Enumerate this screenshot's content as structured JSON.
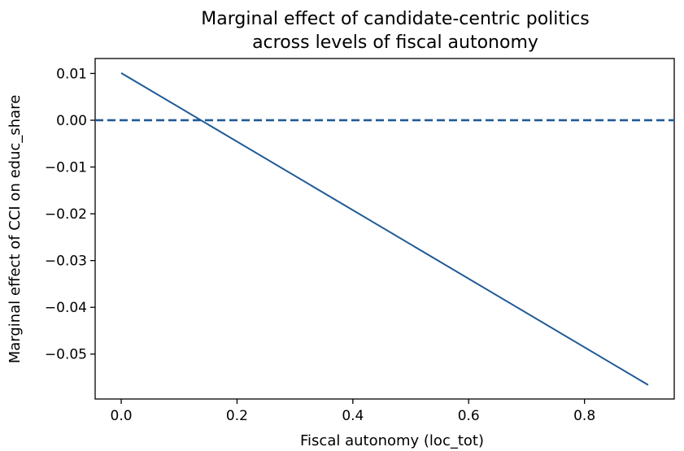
{
  "chart_data": {
    "type": "line",
    "title": "Marginal effect of candidate-centric politics across levels of fiscal autonomy",
    "title_lines": [
      "Marginal effect of candidate-centric politics",
      "across levels of fiscal autonomy"
    ],
    "xlabel": "Fiscal autonomy (loc_tot)",
    "ylabel": "Marginal effect of CCI on educ_share",
    "xlim": [
      -0.045,
      0.955
    ],
    "ylim": [
      -0.0596,
      0.0132
    ],
    "x_ticks": [
      0.0,
      0.2,
      0.4,
      0.6,
      0.8
    ],
    "x_tick_labels": [
      "0.0",
      "0.2",
      "0.4",
      "0.6",
      "0.8"
    ],
    "y_ticks": [
      0.01,
      0.0,
      -0.01,
      -0.02,
      -0.03,
      -0.04,
      -0.05
    ],
    "y_tick_labels": [
      "0.01",
      "0.00",
      "−0.01",
      "−0.02",
      "−0.03",
      "−0.04",
      "−0.05"
    ],
    "grid": false,
    "series": [
      {
        "x": [
          0.0,
          0.91
        ],
        "y": [
          0.0101,
          -0.0566
        ],
        "color": "#1f5a96",
        "style": "solid"
      }
    ],
    "reference_lines": [
      {
        "axis": "y",
        "value": 0.0,
        "color": "#1f5a96",
        "style": "dashed"
      }
    ]
  }
}
